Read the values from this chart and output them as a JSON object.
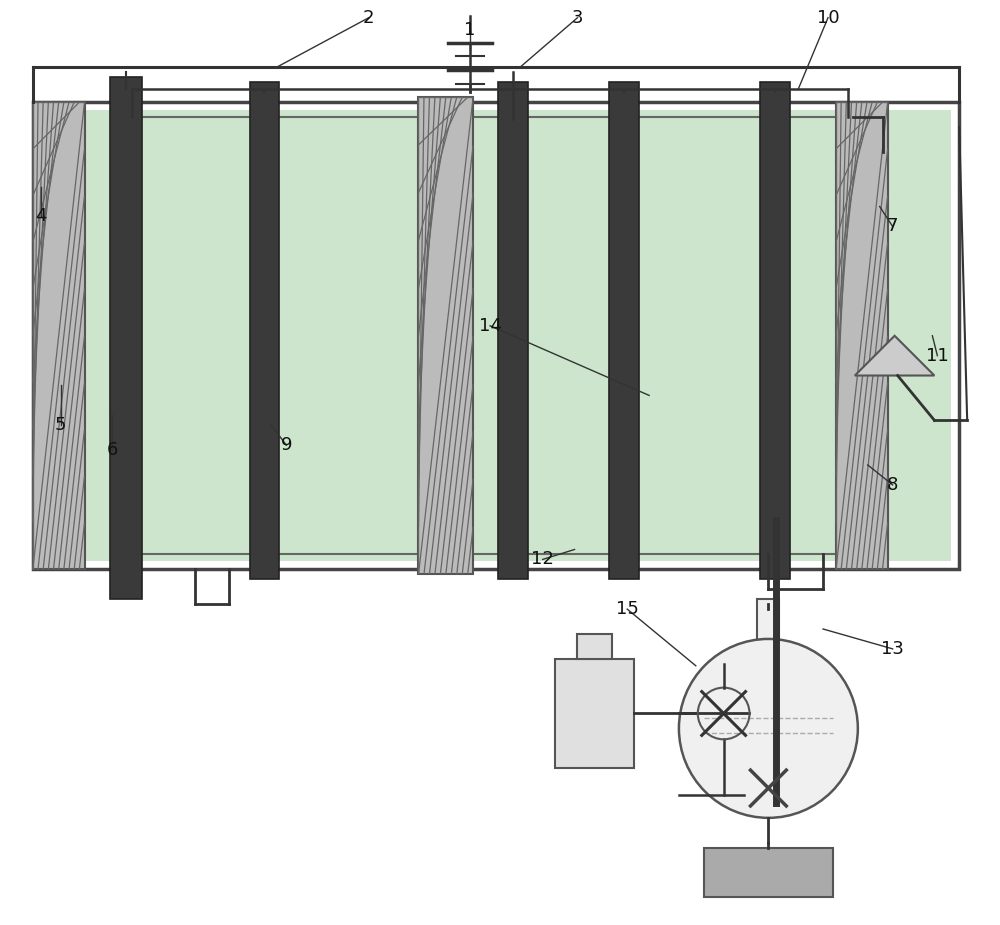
{
  "background_color": "#ffffff",
  "fig_width": 10.0,
  "fig_height": 9.25,
  "wire_color": "#333333",
  "electrode_color": "#4a4a4a",
  "membrane_bg": "#c0c0c0",
  "membrane_hatch_color": "#666666",
  "tank_liquid_color": "#d0ecd0",
  "tank_outer_color": "#88b888",
  "label_fontsize": 13
}
